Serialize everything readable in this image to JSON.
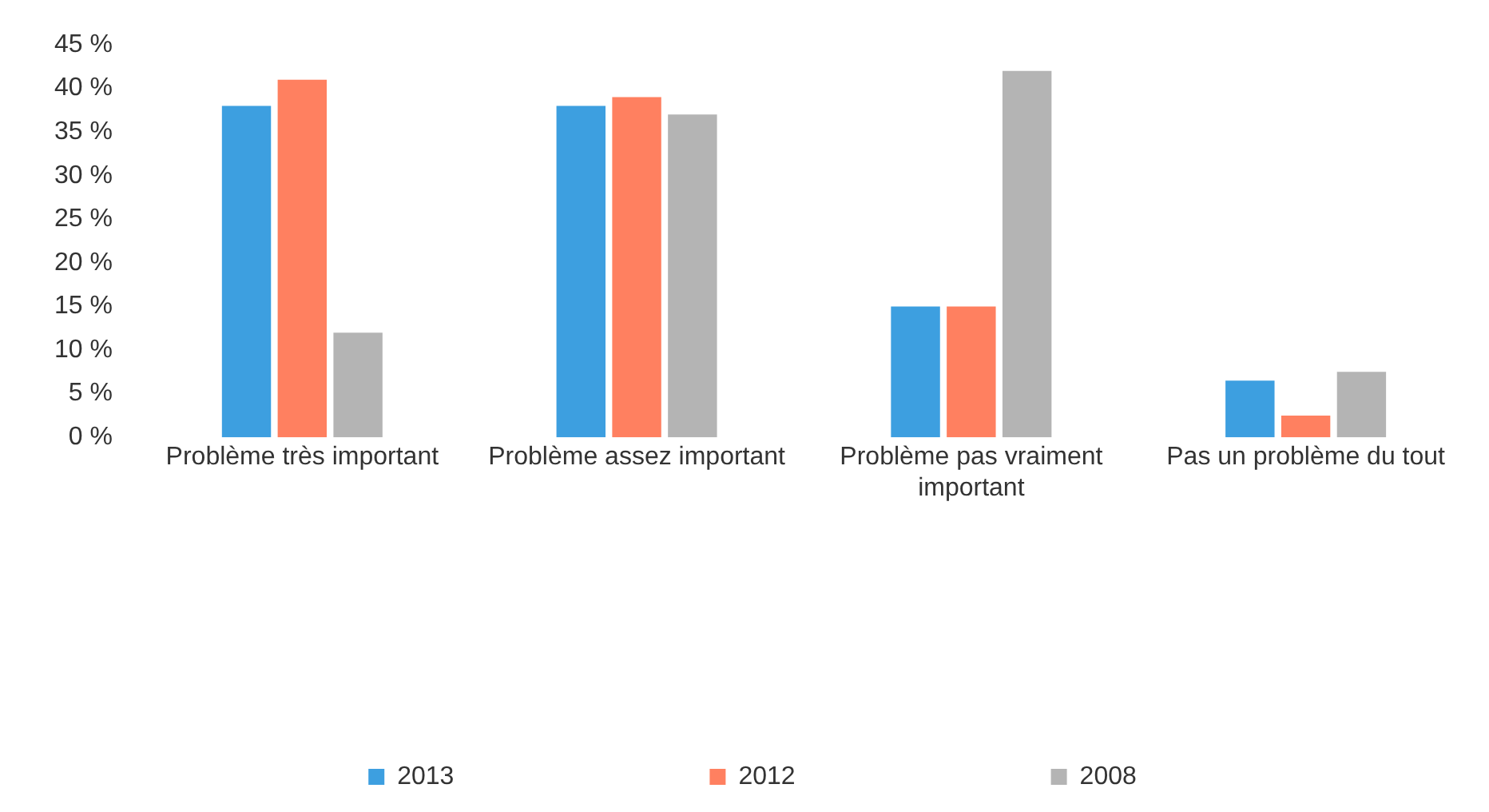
{
  "chart_data": {
    "type": "bar",
    "categories": [
      "Problème très important",
      "Problème assez important",
      "Problème pas vraiment important",
      "Pas un problème du tout"
    ],
    "series": [
      {
        "name": "2013",
        "color": "#3d9fe0",
        "values": [
          38,
          38,
          15,
          6.5
        ]
      },
      {
        "name": "2012",
        "color": "#ff8060",
        "values": [
          41,
          39,
          15,
          2.5
        ]
      },
      {
        "name": "2008",
        "color": "#b4b4b4",
        "values": [
          12,
          37,
          42,
          7.5
        ]
      }
    ],
    "ylim": [
      0,
      45
    ],
    "yticks": [
      {
        "value": 0,
        "label": "0 %"
      },
      {
        "value": 5,
        "label": "5 %"
      },
      {
        "value": 10,
        "label": "10 %"
      },
      {
        "value": 15,
        "label": "15 %"
      },
      {
        "value": 20,
        "label": "20 %"
      },
      {
        "value": 25,
        "label": "25 %"
      },
      {
        "value": 30,
        "label": "30 %"
      },
      {
        "value": 35,
        "label": "35 %"
      },
      {
        "value": 40,
        "label": "40 %"
      },
      {
        "value": 45,
        "label": "45 %"
      }
    ],
    "legend": "bottom"
  }
}
